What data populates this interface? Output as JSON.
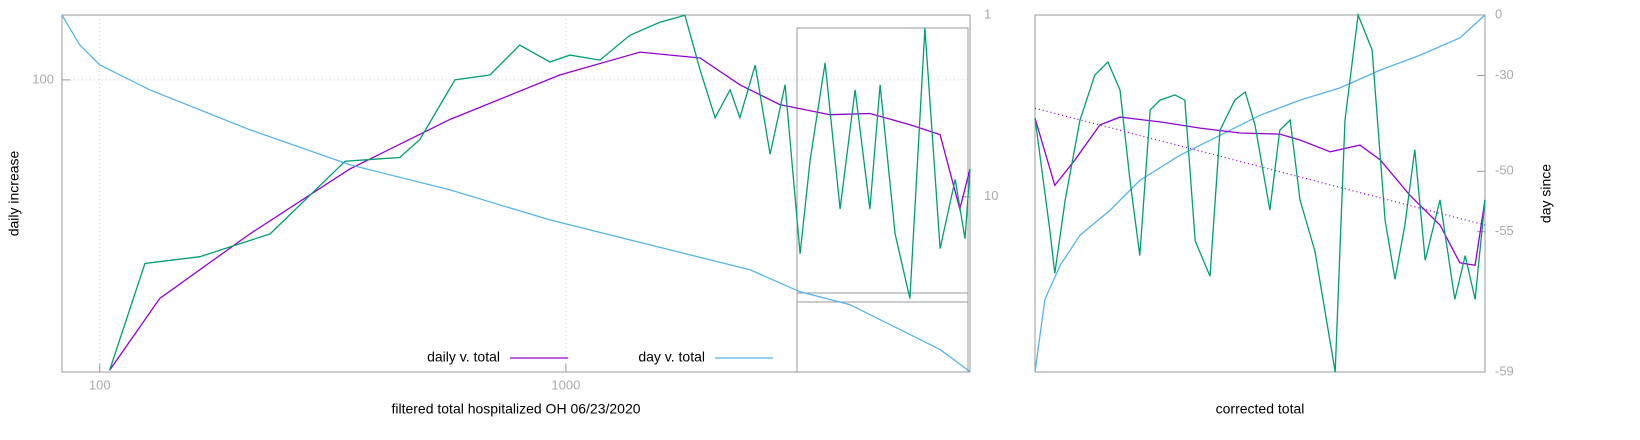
{
  "chart_data": [
    {
      "type": "line",
      "xlabel": "filtered total hospitalized OH 06/23/2020",
      "ylabel": "daily increase",
      "xlim": [
        83,
        7360
      ],
      "xticks": [
        100,
        1000
      ],
      "xlog": true,
      "ylim": [
        22,
        140
      ],
      "yticks": [
        100
      ],
      "ylog": true,
      "y2lim": [
        1,
        92
      ],
      "y2ticks": [
        1,
        10
      ],
      "y2log": true,
      "y2reversed": true,
      "grid": true,
      "legend": "bottom",
      "series": [
        {
          "name": "daily v. total",
          "color": "#9400d3",
          "x": [
            105,
            134.5,
            210,
            344,
            563,
            970,
            1442,
            1940,
            2362,
            2877,
            3686,
            4490,
            5470,
            6350,
            7000,
            7360
          ],
          "values": [
            22.2,
            32.2,
            45,
            63,
            81.4,
            102.6,
            115.5,
            112,
            97.5,
            88,
            83.5,
            84,
            79.3,
            75.3,
            51.2,
            63
          ]
        },
        {
          "name": "day v. total",
          "color": "#56b4e9",
          "axis": "y2",
          "x": [
            83,
            90.6,
            100,
            128,
            210,
            344,
            563,
            924,
            1514,
            2483,
            3180,
            4064,
            5210,
            6350,
            7360
          ],
          "values": [
            1,
            1.46,
            1.88,
            2.58,
            4.28,
            6.67,
            9.15,
            13.4,
            18.4,
            25.2,
            33.3,
            39.2,
            53.8,
            69.3,
            91.5
          ]
        },
        {
          "color": "#009e73",
          "x": [
            105,
            125,
            164,
            232,
            336,
            440,
            486,
            578,
            687,
            796,
            924,
            1020,
            1183,
            1372,
            1591,
            1800,
            1940,
            2090,
            2250,
            2362,
            2547,
            2742,
            2953,
            3180,
            3342,
            3598,
            3875,
            4172,
            4490,
            4722,
            5083,
            5470,
            5890,
            6350,
            6840,
            7180,
            7360
          ],
          "values": [
            22.2,
            38.6,
            40,
            45,
            65.6,
            66.9,
            73.4,
            100,
            102.6,
            119.8,
            109.7,
            113.7,
            110.8,
            126,
            134.8,
            139.8,
            105.3,
            82.2,
            95,
            82.2,
            108,
            68,
            97.5,
            40.6,
            66.2,
            109.2,
            51.2,
            95,
            51.2,
            97.5,
            45,
            32.2,
            130.7,
            41.7,
            59.7,
            43.9,
            63
          ]
        }
      ]
    },
    {
      "type": "line",
      "xlabel": "corrected total",
      "ylabel": "day since",
      "xlim": [
        0,
        100
      ],
      "ylim": [
        -59,
        0
      ],
      "yticks": [
        0,
        -30,
        -50,
        -55,
        -59
      ],
      "yscale": "log-shifted",
      "grid": false,
      "series": [
        {
          "color": "#56b4e9",
          "x": [
            0,
            2.2,
            5.6,
            10,
            16.7,
            23.3,
            32.2,
            41.1,
            50,
            58.9,
            67.8,
            76.7,
            85.6,
            94.4,
            100
          ],
          "values": [
            -59,
            -57.7,
            -56.6,
            -55.2,
            -53.6,
            -51,
            -48,
            -44.9,
            -41,
            -37.4,
            -34,
            -28.1,
            -22.1,
            -13.9,
            0
          ]
        },
        {
          "color": "#9400d3",
          "x": [
            0,
            4.4,
            8.9,
            14.4,
            18.9,
            27.8,
            36.7,
            45.6,
            54.4,
            58.9,
            65.6,
            72.2,
            76.7,
            83.3,
            90,
            94.4,
            97.8,
            100
          ],
          "values": [
            -41.6,
            -51.5,
            -48.6,
            -43,
            -41.4,
            -42.4,
            -43.6,
            -44.5,
            -44.7,
            -45.7,
            -47.5,
            -46.5,
            -48.6,
            -52.4,
            -54.6,
            -56.5,
            -56.6,
            -52.8
          ]
        },
        {
          "color": "#009e73",
          "x": [
            0,
            3.3,
            4.4,
            6.7,
            10,
            13.3,
            16.2,
            18.9,
            21.1,
            23.3,
            25.6,
            27.8,
            31.1,
            33.3,
            35.6,
            38.9,
            41.1,
            44.4,
            46.7,
            48.9,
            52.2,
            54.4,
            56.7,
            58.9,
            62.2,
            66.7,
            68.9,
            71.8,
            74.9,
            77.8,
            80,
            82.2,
            84.4,
            86.7,
            90,
            93.3,
            95.6,
            97.8,
            100
          ],
          "values": [
            -41.6,
            -54.9,
            -56.9,
            -52.8,
            -42,
            -29.9,
            -25,
            -34.6,
            -51,
            -56.2,
            -39.8,
            -37.4,
            -36,
            -37.4,
            -55.5,
            -57,
            -44,
            -37.4,
            -35.2,
            -43,
            -53.6,
            -44,
            -42,
            -52.8,
            -56,
            -59,
            -42,
            0,
            -19.8,
            -54.3,
            -57.1,
            -54.6,
            -47.2,
            -56.4,
            -52.8,
            -57.7,
            -56.2,
            -57.7,
            -52.8
          ]
        },
        {
          "color": "#9400d3",
          "dash": "dotted",
          "x": [
            0,
            100
          ],
          "values": [
            -39.4,
            -54.6
          ]
        }
      ]
    }
  ]
}
